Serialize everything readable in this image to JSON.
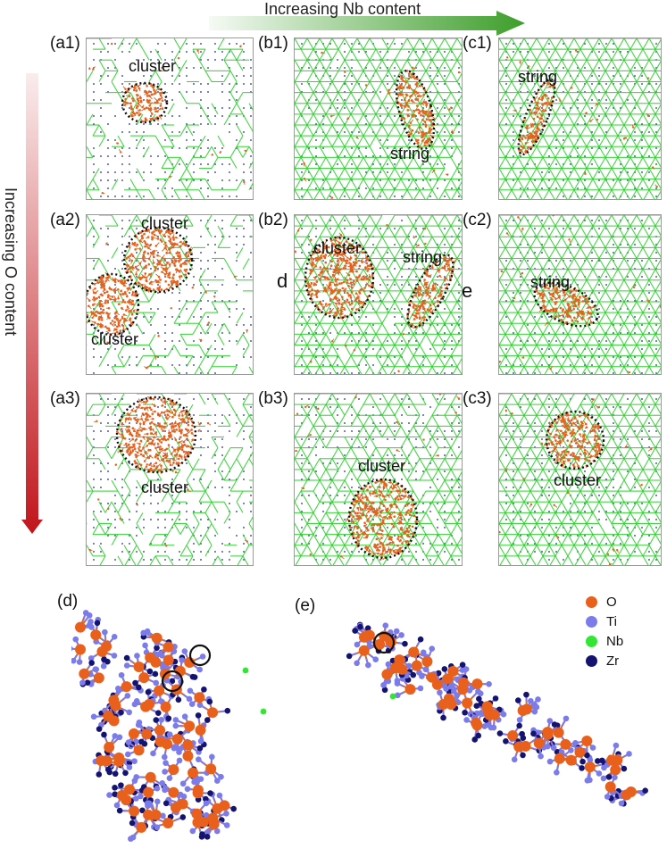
{
  "axes": {
    "nb_label": "Increasing Nb content",
    "o_label": "Increasing O content"
  },
  "panels": [
    {
      "id": "a1",
      "label": "(a1)",
      "annotations": [
        "cluster"
      ]
    },
    {
      "id": "b1",
      "label": "(b1)",
      "annotations": [
        "string"
      ]
    },
    {
      "id": "c1",
      "label": "(c1)",
      "annotations": [
        "string"
      ]
    },
    {
      "id": "a2",
      "label": "(a2)",
      "annotations": [
        "cluster",
        "cluster"
      ]
    },
    {
      "id": "b2",
      "label": "(b2)",
      "annotations": [
        "cluster",
        "string"
      ]
    },
    {
      "id": "c2",
      "label": "(c2)",
      "annotations": [
        "string"
      ]
    },
    {
      "id": "a3",
      "label": "(a3)",
      "annotations": [
        "cluster"
      ]
    },
    {
      "id": "b3",
      "label": "(b3)",
      "annotations": [
        "cluster"
      ]
    },
    {
      "id": "c3",
      "label": "(c3)",
      "annotations": [
        "cluster"
      ]
    }
  ],
  "side_letters": {
    "d": "d",
    "e": "e"
  },
  "detail": {
    "d_label": "(d)",
    "e_label": "(e)"
  },
  "legend": [
    {
      "symbol": "O",
      "color": "#e8601c"
    },
    {
      "symbol": "Ti",
      "color": "#7b7bea"
    },
    {
      "symbol": "Nb",
      "color": "#33e633"
    },
    {
      "symbol": "Zr",
      "color": "#141470"
    }
  ],
  "colors": {
    "nb_arrow": "#3d9e2a",
    "o_arrow": "#c0151b",
    "lattice": "#2fcf2f",
    "oxygen": "#e8601c"
  }
}
